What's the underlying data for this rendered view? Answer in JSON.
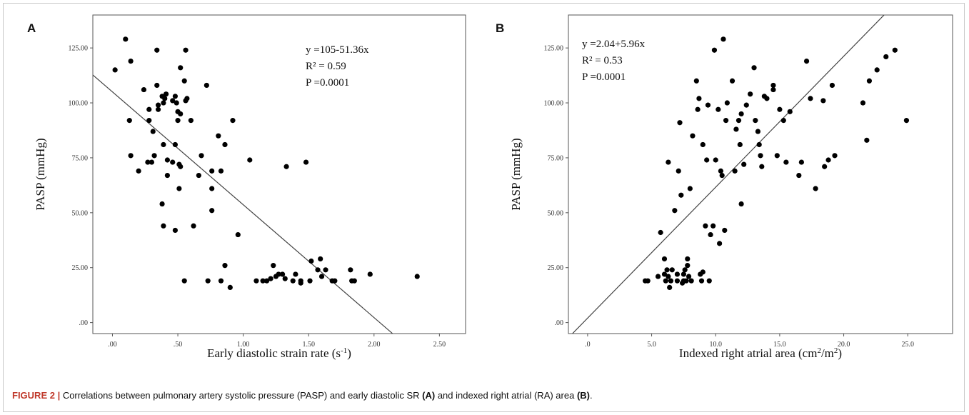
{
  "caption": {
    "label": "FIGURE 2 |",
    "text_1": " Correlations between pulmonary artery systolic pressure (PASP) and early diastolic SR ",
    "ref_a": "(A)",
    "text_2": " and indexed right atrial (RA) area ",
    "ref_b": "(B)",
    "text_3": "."
  },
  "chart_data": [
    {
      "type": "scatter",
      "panel_label": "A",
      "title": "",
      "xlabel": "Early diastolic strain rate (s",
      "xlabel_sup": "-1",
      "xlabel_end": ")",
      "ylabel": "PASP (mmHg)",
      "xlim": [
        -0.15,
        2.7
      ],
      "ylim": [
        -5,
        140
      ],
      "xticks": [
        0.0,
        0.5,
        1.0,
        1.5,
        2.0,
        2.5
      ],
      "xtick_labels": [
        ".00",
        ".50",
        "1.00",
        "1.50",
        "2.00",
        "2.50"
      ],
      "yticks": [
        0,
        25,
        50,
        75,
        100,
        125
      ],
      "ytick_labels": [
        ".00",
        "25.00",
        "50.00",
        "75.00",
        "100.00",
        "125.00"
      ],
      "grid": false,
      "annotations": [
        "y =105-51.36x",
        "R² = 0.59",
        "P =0.0001"
      ],
      "fit_line": {
        "intercept": 105,
        "slope": -51.36
      },
      "points": [
        [
          0.02,
          115
        ],
        [
          0.1,
          129
        ],
        [
          0.14,
          119
        ],
        [
          0.13,
          92
        ],
        [
          0.14,
          76
        ],
        [
          0.2,
          69
        ],
        [
          0.24,
          106
        ],
        [
          0.28,
          97
        ],
        [
          0.28,
          92
        ],
        [
          0.27,
          73
        ],
        [
          0.3,
          73
        ],
        [
          0.31,
          87
        ],
        [
          0.32,
          76
        ],
        [
          0.34,
          124
        ],
        [
          0.34,
          108
        ],
        [
          0.35,
          99
        ],
        [
          0.35,
          97
        ],
        [
          0.38,
          103
        ],
        [
          0.39,
          100
        ],
        [
          0.4,
          102
        ],
        [
          0.41,
          104
        ],
        [
          0.38,
          54
        ],
        [
          0.39,
          44
        ],
        [
          0.39,
          81
        ],
        [
          0.42,
          74
        ],
        [
          0.42,
          67
        ],
        [
          0.46,
          101
        ],
        [
          0.46,
          73
        ],
        [
          0.48,
          103
        ],
        [
          0.48,
          81
        ],
        [
          0.48,
          42
        ],
        [
          0.49,
          100
        ],
        [
          0.5,
          96
        ],
        [
          0.5,
          92
        ],
        [
          0.51,
          61
        ],
        [
          0.51,
          72
        ],
        [
          0.52,
          116
        ],
        [
          0.52,
          95
        ],
        [
          0.52,
          71
        ],
        [
          0.55,
          110
        ],
        [
          0.56,
          124
        ],
        [
          0.56,
          101
        ],
        [
          0.57,
          102
        ],
        [
          0.55,
          19
        ],
        [
          0.6,
          92
        ],
        [
          0.62,
          44
        ],
        [
          0.66,
          67
        ],
        [
          0.68,
          76
        ],
        [
          0.72,
          108
        ],
        [
          0.73,
          19
        ],
        [
          0.76,
          69
        ],
        [
          0.76,
          61
        ],
        [
          0.76,
          51
        ],
        [
          0.81,
          85
        ],
        [
          0.83,
          69
        ],
        [
          0.83,
          19
        ],
        [
          0.86,
          81
        ],
        [
          0.86,
          26
        ],
        [
          0.9,
          16
        ],
        [
          0.92,
          92
        ],
        [
          0.96,
          40
        ],
        [
          1.05,
          74
        ],
        [
          1.1,
          19
        ],
        [
          1.15,
          19
        ],
        [
          1.18,
          19
        ],
        [
          1.21,
          20
        ],
        [
          1.23,
          26
        ],
        [
          1.25,
          21
        ],
        [
          1.27,
          22
        ],
        [
          1.3,
          22
        ],
        [
          1.32,
          20
        ],
        [
          1.33,
          71
        ],
        [
          1.38,
          19
        ],
        [
          1.4,
          22
        ],
        [
          1.44,
          18
        ],
        [
          1.44,
          19
        ],
        [
          1.48,
          73
        ],
        [
          1.51,
          19
        ],
        [
          1.52,
          28
        ],
        [
          1.57,
          24
        ],
        [
          1.59,
          29
        ],
        [
          1.6,
          21
        ],
        [
          1.63,
          24
        ],
        [
          1.68,
          19
        ],
        [
          1.7,
          19
        ],
        [
          1.82,
          24
        ],
        [
          1.83,
          19
        ],
        [
          1.85,
          19
        ],
        [
          1.97,
          22
        ],
        [
          2.33,
          21
        ]
      ]
    },
    {
      "type": "scatter",
      "panel_label": "B",
      "title": "",
      "xlabel": "Indexed right atrial area (cm",
      "xlabel_sup": "2",
      "xlabel_mid": "/m",
      "xlabel_sup2": "2",
      "xlabel_end": ")",
      "ylabel": "PASP (mmHg)",
      "xlim": [
        -1.5,
        28.5
      ],
      "ylim": [
        -5,
        140
      ],
      "xticks": [
        0,
        5,
        10,
        15,
        20,
        25
      ],
      "xtick_labels": [
        ".0",
        "5.0",
        "10.0",
        "15.0",
        "20.0",
        "25.0"
      ],
      "yticks": [
        0,
        25,
        50,
        75,
        100,
        125
      ],
      "ytick_labels": [
        ".00",
        "25.00",
        "50.00",
        "75.00",
        "100.00",
        "125.00"
      ],
      "grid": false,
      "annotations": [
        "y =2.04+5.96x",
        "R² = 0.53",
        "P =0.0001"
      ],
      "fit_line": {
        "intercept": 2.04,
        "slope": 5.96
      },
      "points": [
        [
          4.5,
          19
        ],
        [
          4.7,
          19
        ],
        [
          5.5,
          21
        ],
        [
          5.7,
          41
        ],
        [
          6.0,
          22
        ],
        [
          6.0,
          29
        ],
        [
          6.1,
          19
        ],
        [
          6.2,
          24
        ],
        [
          6.3,
          21
        ],
        [
          6.3,
          73
        ],
        [
          6.4,
          16
        ],
        [
          6.5,
          19
        ],
        [
          6.6,
          24
        ],
        [
          6.8,
          51
        ],
        [
          7.0,
          19
        ],
        [
          7.0,
          22
        ],
        [
          7.1,
          69
        ],
        [
          7.2,
          91
        ],
        [
          7.3,
          58
        ],
        [
          7.4,
          18
        ],
        [
          7.5,
          19
        ],
        [
          7.5,
          22
        ],
        [
          7.6,
          24
        ],
        [
          7.7,
          19
        ],
        [
          7.8,
          26
        ],
        [
          7.8,
          29
        ],
        [
          7.9,
          21
        ],
        [
          8.0,
          61
        ],
        [
          8.1,
          19
        ],
        [
          8.2,
          85
        ],
        [
          8.5,
          110
        ],
        [
          8.6,
          97
        ],
        [
          8.7,
          102
        ],
        [
          8.8,
          22
        ],
        [
          8.9,
          19
        ],
        [
          9.0,
          23
        ],
        [
          9.0,
          81
        ],
        [
          9.2,
          44
        ],
        [
          9.3,
          74
        ],
        [
          9.4,
          99
        ],
        [
          9.5,
          19
        ],
        [
          9.6,
          40
        ],
        [
          9.8,
          44
        ],
        [
          9.9,
          124
        ],
        [
          10.0,
          74
        ],
        [
          10.2,
          97
        ],
        [
          10.3,
          36
        ],
        [
          10.4,
          69
        ],
        [
          10.5,
          67
        ],
        [
          10.6,
          129
        ],
        [
          10.7,
          42
        ],
        [
          10.8,
          92
        ],
        [
          10.9,
          100
        ],
        [
          11.3,
          110
        ],
        [
          11.5,
          69
        ],
        [
          11.6,
          88
        ],
        [
          11.8,
          92
        ],
        [
          11.9,
          81
        ],
        [
          12.0,
          95
        ],
        [
          12.0,
          54
        ],
        [
          12.2,
          72
        ],
        [
          12.4,
          99
        ],
        [
          12.7,
          104
        ],
        [
          13.0,
          116
        ],
        [
          13.1,
          92
        ],
        [
          13.3,
          87
        ],
        [
          13.4,
          81
        ],
        [
          13.5,
          76
        ],
        [
          13.6,
          71
        ],
        [
          13.8,
          103
        ],
        [
          14.0,
          102
        ],
        [
          14.5,
          108
        ],
        [
          14.5,
          106
        ],
        [
          14.8,
          76
        ],
        [
          15.0,
          97
        ],
        [
          15.3,
          92
        ],
        [
          15.5,
          73
        ],
        [
          15.8,
          96
        ],
        [
          16.5,
          67
        ],
        [
          16.7,
          73
        ],
        [
          17.1,
          119
        ],
        [
          17.4,
          102
        ],
        [
          17.8,
          61
        ],
        [
          18.4,
          101
        ],
        [
          18.5,
          71
        ],
        [
          18.8,
          74
        ],
        [
          19.1,
          108
        ],
        [
          19.3,
          76
        ],
        [
          21.5,
          100
        ],
        [
          21.8,
          83
        ],
        [
          22.0,
          110
        ],
        [
          22.6,
          115
        ],
        [
          23.3,
          121
        ],
        [
          24.0,
          124
        ],
        [
          24.9,
          92
        ]
      ]
    }
  ]
}
